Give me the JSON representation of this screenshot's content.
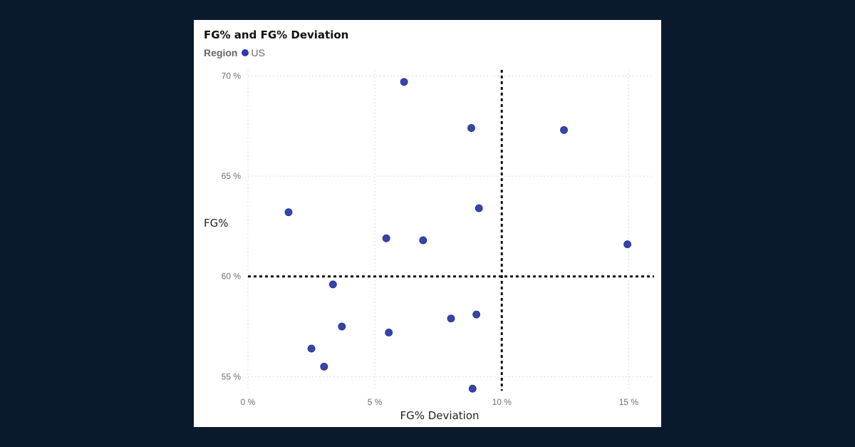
{
  "chart_data": {
    "type": "scatter",
    "title": "FG% and FG% Deviation",
    "xlabel": "FG% Deviation",
    "ylabel": "FG%",
    "legend": {
      "title": "Region",
      "placement": "top-left",
      "entries": [
        "US"
      ]
    },
    "xlim": [
      0,
      16
    ],
    "ylim": [
      54.3,
      70.3
    ],
    "x_ticks": [
      0,
      5,
      10,
      15
    ],
    "y_ticks": [
      55,
      60,
      65,
      70
    ],
    "x_tick_labels": [
      "0 %",
      "5 %",
      "10 %",
      "15 %"
    ],
    "y_tick_labels": [
      "55 %",
      "60 %",
      "65 %",
      "70 %"
    ],
    "grid": true,
    "reference_lines": {
      "x": 10,
      "y": 60
    },
    "series": [
      {
        "name": "US",
        "color": "#2b3aa6",
        "points": [
          {
            "x": 1.6,
            "y": 63.2
          },
          {
            "x": 2.5,
            "y": 56.4
          },
          {
            "x": 3.0,
            "y": 55.5
          },
          {
            "x": 3.35,
            "y": 59.6
          },
          {
            "x": 3.7,
            "y": 57.5
          },
          {
            "x": 5.45,
            "y": 61.9
          },
          {
            "x": 5.55,
            "y": 57.2
          },
          {
            "x": 6.15,
            "y": 69.7
          },
          {
            "x": 6.9,
            "y": 61.8
          },
          {
            "x": 8.0,
            "y": 57.9
          },
          {
            "x": 8.8,
            "y": 67.4
          },
          {
            "x": 8.85,
            "y": 54.4
          },
          {
            "x": 9.0,
            "y": 58.1
          },
          {
            "x": 9.1,
            "y": 63.4
          },
          {
            "x": 12.45,
            "y": 67.3
          },
          {
            "x": 14.95,
            "y": 61.6
          }
        ]
      }
    ]
  }
}
